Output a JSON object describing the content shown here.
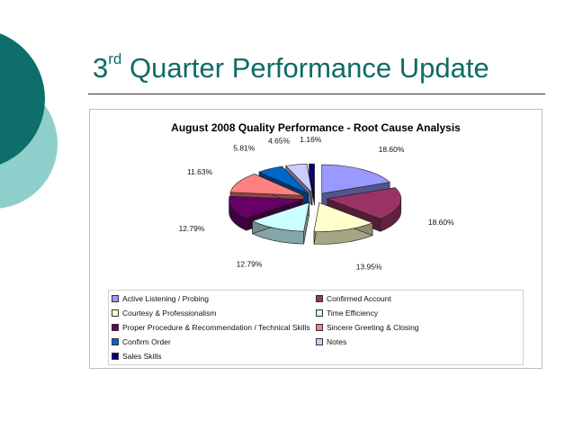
{
  "slide": {
    "title_prefix": "3",
    "title_sup": "rd",
    "title_rest": " Quarter Performance Update"
  },
  "chart_data": {
    "type": "pie",
    "title": "August 2008 Quality Performance - Root Cause Analysis",
    "legend_position": "bottom",
    "slices": [
      {
        "label": "Active Listening / Probing",
        "value": 18.6,
        "display": "18.60%",
        "color": "#9999ff"
      },
      {
        "label": "Confirmed Account",
        "value": 18.6,
        "display": "18.60%",
        "color": "#993366"
      },
      {
        "label": "Courtesy & Professionalism",
        "value": 13.95,
        "display": "13.95%",
        "color": "#ffffcc"
      },
      {
        "label": "Time Efficiency",
        "value": 12.79,
        "display": "12.79%",
        "color": "#ccffff"
      },
      {
        "label": "Proper Procedure & Recommendation / Technical Skills",
        "value": 12.79,
        "display": "12.79%",
        "color": "#660066"
      },
      {
        "label": "Sincere Greeting & Closing",
        "value": 11.63,
        "display": "11.63%",
        "color": "#ff8080"
      },
      {
        "label": "Confirm Order",
        "value": 5.81,
        "display": "5.81%",
        "color": "#0066cc"
      },
      {
        "label": "Notes",
        "value": 4.65,
        "display": "4.65%",
        "color": "#ccccff"
      },
      {
        "label": "Sales Skills",
        "value": 1.16,
        "display": "1.16%",
        "color": "#000080"
      }
    ]
  }
}
